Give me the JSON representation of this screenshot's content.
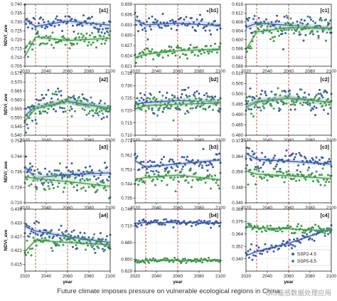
{
  "colors": {
    "blue": "#3b5bab",
    "green": "#3f9a4c",
    "band_blue": "#b5c6e6",
    "band_green": "#bfe0bf",
    "vline": "#d9463a"
  },
  "axis": {
    "ylabel": "NDVI_ave",
    "xlabel": "year",
    "xticks": [
      "2020",
      "2040",
      "2060",
      "2080",
      "2100"
    ]
  },
  "legend": {
    "ssp245": "SSP2-4.5",
    "ssp585": "SSP5-8.5"
  },
  "caption": "Future climate imposes pressure on vulnerable ecological regions in China",
  "watermark": "GIS遥感数据处理应用",
  "chart_data": [
    {
      "type": "scatter",
      "label": "[a1]",
      "ylim": [
        0.705,
        0.74
      ],
      "yticks": [
        "0.740",
        "0.735",
        "0.730",
        "0.725",
        "0.720",
        "0.715",
        "0.710",
        "0.705"
      ],
      "blue": {
        "center": [
          0.7315,
          0.7275,
          0.7305,
          0.729,
          0.7282
        ],
        "spread": 0.004
      },
      "green": {
        "center": [
          0.7105,
          0.7215,
          0.7195,
          0.7202,
          0.7208
        ],
        "spread": 0.0035
      }
    },
    {
      "type": "scatter",
      "label": "[b1]",
      "ylim": [
        0.821,
        0.839
      ],
      "yticks": [
        "0.839",
        "0.836",
        "0.833",
        "0.830",
        "0.827",
        "0.824",
        "0.821"
      ],
      "blue": {
        "center": [
          0.8345,
          0.833,
          0.8335,
          0.8335,
          0.8328
        ],
        "spread": 0.0022
      },
      "green": {
        "center": [
          0.8235,
          0.8245,
          0.8255,
          0.8258,
          0.826
        ],
        "spread": 0.0015
      }
    },
    {
      "type": "scatter",
      "label": "[c1]",
      "ylim": [
        0.588,
        0.616
      ],
      "yticks": [
        "0.616",
        "0.612",
        "0.608",
        "0.604",
        "0.600",
        "0.596",
        "0.592",
        "0.588"
      ],
      "blue": {
        "center": [
          0.6055,
          0.6075,
          0.6065,
          0.6058,
          0.6052
        ],
        "spread": 0.0035
      },
      "green": {
        "center": [
          0.5955,
          0.6035,
          0.6055,
          0.6052,
          0.605
        ],
        "spread": 0.003
      }
    },
    {
      "type": "scatter",
      "label": "[a2]",
      "ylim": [
        0.54,
        0.575
      ],
      "yticks": [
        "0.575",
        "0.570",
        "0.565",
        "0.560",
        "0.555",
        "0.550",
        "0.545",
        "0.540"
      ],
      "blue": {
        "center": [
          0.551,
          0.556,
          0.5595,
          0.557,
          0.5555
        ],
        "spread": 0.0045
      },
      "green": {
        "center": [
          0.548,
          0.555,
          0.559,
          0.5565,
          0.555
        ],
        "spread": 0.0045
      }
    },
    {
      "type": "scatter",
      "label": "[b2]",
      "ylim": [
        0.71,
        0.735
      ],
      "yticks": [
        "0.735",
        "0.730",
        "0.725",
        "0.720",
        "0.715",
        "0.710"
      ],
      "blue": {
        "center": [
          0.7225,
          0.7232,
          0.724,
          0.7238,
          0.7235
        ],
        "spread": 0.003
      },
      "green": {
        "center": [
          0.7205,
          0.722,
          0.7225,
          0.7228,
          0.723
        ],
        "spread": 0.003
      }
    },
    {
      "type": "scatter",
      "label": "[c2]",
      "ylim": [
        0.48,
        0.51
      ],
      "yticks": [
        "0.510",
        "0.505",
        "0.500",
        "0.495",
        "0.490",
        "0.485",
        "0.480"
      ],
      "blue": {
        "center": [
          0.4945,
          0.4965,
          0.4985,
          0.4965,
          0.4958
        ],
        "spread": 0.0035
      },
      "green": {
        "center": [
          0.4935,
          0.496,
          0.4978,
          0.4968,
          0.496
        ],
        "spread": 0.0035
      }
    },
    {
      "type": "scatter",
      "label": "[a3]",
      "ylim": [
        0.72,
        0.752
      ],
      "yticks": [
        "0.752",
        "0.744",
        "0.736",
        "0.728",
        "0.720"
      ],
      "blue": {
        "center": [
          0.7385,
          0.733,
          0.7345,
          0.735,
          0.7355
        ],
        "spread": 0.004
      },
      "green": {
        "center": [
          0.7335,
          0.7325,
          0.731,
          0.73,
          0.7285
        ],
        "spread": 0.004
      }
    },
    {
      "type": "scatter",
      "label": "[b3]",
      "ylim": [
        0.732,
        0.771
      ],
      "yticks": [
        "0.771",
        "0.762",
        "0.753",
        "0.744",
        "0.735"
      ],
      "blue": {
        "center": [
          0.7585,
          0.7545,
          0.7565,
          0.7578,
          0.759
        ],
        "spread": 0.0035
      },
      "green": {
        "center": [
          0.7465,
          0.748,
          0.7495,
          0.748,
          0.7465
        ],
        "spread": 0.0035
      }
    },
    {
      "type": "scatter",
      "label": "[c3]",
      "ylim": [
        0.34,
        0.372
      ],
      "yticks": [
        "0.372",
        "0.364",
        "0.356",
        "0.348",
        "0.340"
      ],
      "blue": {
        "center": [
          0.3655,
          0.3625,
          0.3615,
          0.3608,
          0.36
        ],
        "spread": 0.003
      },
      "green": {
        "center": [
          0.3565,
          0.3548,
          0.354,
          0.3532,
          0.3525
        ],
        "spread": 0.003
      }
    },
    {
      "type": "scatter",
      "label": "[a4]",
      "ylim": [
        0.412,
        0.439
      ],
      "yticks": [
        "0.439",
        "0.433",
        "0.427",
        "0.421",
        "0.415"
      ],
      "blue": {
        "center": [
          0.4315,
          0.4295,
          0.427,
          0.4255,
          0.4245
        ],
        "spread": 0.003
      },
      "green": {
        "center": [
          0.4205,
          0.4255,
          0.4245,
          0.424,
          0.4235
        ],
        "spread": 0.0025
      }
    },
    {
      "type": "scatter",
      "label": "[b4]",
      "ylim": [
        0.629,
        0.74
      ],
      "yticks": [
        "0.740",
        "0.710",
        "0.680",
        "0.650",
        "0.629"
      ],
      "blue": {
        "center": [
          0.715,
          0.716,
          0.716,
          0.716,
          0.715
        ],
        "spread": 0.0045
      },
      "green": {
        "center": [
          0.647,
          0.648,
          0.648,
          0.649,
          0.649
        ],
        "spread": 0.003
      }
    },
    {
      "type": "scatter",
      "label": "[c4]",
      "ylim": [
        0.328,
        0.388
      ],
      "yticks": [
        "0.388",
        "0.376",
        "0.364",
        "0.352",
        "0.340"
      ],
      "blue": {
        "center": [
          0.343,
          0.347,
          0.355,
          0.362,
          0.369
        ],
        "spread": 0.0035
      },
      "green": {
        "center": [
          0.371,
          0.37,
          0.369,
          0.368,
          0.367
        ],
        "spread": 0.003
      }
    }
  ]
}
